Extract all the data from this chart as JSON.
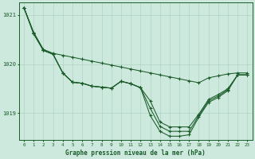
{
  "title": "Graphe pression niveau de la mer (hPa)",
  "background_color": "#cde8dc",
  "grid_color": "#b0d4c4",
  "line_color": "#1a5c2a",
  "xlim": [
    -0.5,
    23.5
  ],
  "ylim": [
    1018.45,
    1021.25
  ],
  "yticks": [
    1019,
    1020,
    1021
  ],
  "xticks": [
    0,
    1,
    2,
    3,
    4,
    5,
    6,
    7,
    8,
    9,
    10,
    11,
    12,
    13,
    14,
    15,
    16,
    17,
    18,
    19,
    20,
    21,
    22,
    23
  ],
  "s1": [
    1021.15,
    1020.65,
    1020.3,
    1020.22,
    1020.18,
    1020.14,
    1020.1,
    1020.06,
    1020.02,
    1019.98,
    1019.94,
    1019.9,
    1019.86,
    1019.82,
    1019.78,
    1019.74,
    1019.7,
    1019.66,
    1019.62,
    1019.72,
    1019.76,
    1019.8,
    1019.82,
    1019.82
  ],
  "s2": [
    1021.15,
    1020.62,
    1020.28,
    1020.2,
    1019.82,
    1019.63,
    1019.61,
    1019.55,
    1019.53,
    1019.51,
    1019.65,
    1019.6,
    1019.52,
    1019.25,
    1018.82,
    1018.72,
    1018.72,
    1018.72,
    1018.98,
    1019.28,
    1019.38,
    1019.5,
    1019.78,
    1019.78
  ],
  "s3": [
    1021.15,
    1020.62,
    1020.28,
    1020.2,
    1019.82,
    1019.63,
    1019.61,
    1019.55,
    1019.53,
    1019.51,
    1019.65,
    1019.6,
    1019.52,
    1019.1,
    1018.73,
    1018.63,
    1018.63,
    1018.63,
    1018.95,
    1019.25,
    1019.35,
    1019.48,
    1019.78,
    1019.78
  ],
  "s4": [
    1021.15,
    1020.62,
    1020.28,
    1020.2,
    1019.82,
    1019.63,
    1019.61,
    1019.55,
    1019.53,
    1019.51,
    1019.65,
    1019.6,
    1019.52,
    1018.95,
    1018.63,
    1018.53,
    1018.53,
    1018.56,
    1018.92,
    1019.22,
    1019.32,
    1019.46,
    1019.78,
    1019.78
  ]
}
